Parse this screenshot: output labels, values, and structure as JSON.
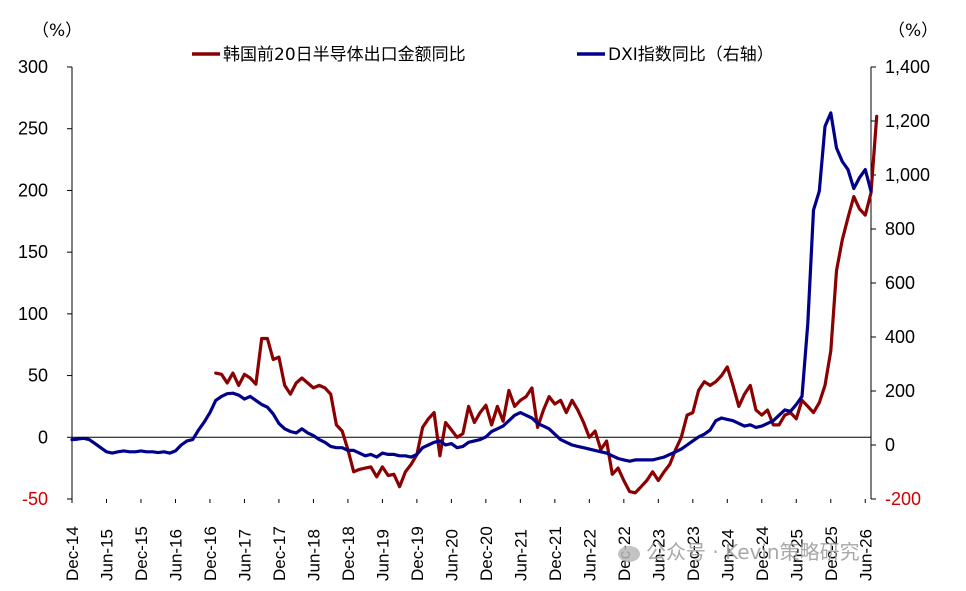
{
  "chart_data": {
    "type": "line",
    "left_unit": "（%）",
    "right_unit": "（%）",
    "left_axis": {
      "ticks": [
        300,
        250,
        200,
        150,
        100,
        50,
        0,
        -50
      ],
      "ylim": [
        -50,
        300
      ]
    },
    "right_axis": {
      "ticks": [
        "1,400",
        "1,200",
        "1,000",
        "800",
        "600",
        "400",
        "200",
        "0",
        "-200"
      ],
      "ylim": [
        -200,
        1400
      ]
    },
    "x_labels": [
      "Dec-14",
      "Jun-15",
      "Dec-15",
      "Jun-16",
      "Dec-16",
      "Jun-17",
      "Dec-17",
      "Jun-18",
      "Dec-18",
      "Jun-19",
      "Dec-19",
      "Jun-20",
      "Dec-20",
      "Jun-21",
      "Dec-21",
      "Jun-22",
      "Dec-22",
      "Jun-23",
      "Dec-23",
      "Jun-24",
      "Dec-24",
      "Jun-25",
      "Dec-25",
      "Jun-26"
    ],
    "x_start": "2014-12",
    "x_end": "2026-07",
    "series": [
      {
        "name": "韩国前20日半导体出口金额同比",
        "color": "#8b0000",
        "axis": "left",
        "points": [
          [
            "2017-01",
            52
          ],
          [
            "2017-02",
            51
          ],
          [
            "2017-03",
            44
          ],
          [
            "2017-04",
            52
          ],
          [
            "2017-05",
            42
          ],
          [
            "2017-06",
            51
          ],
          [
            "2017-07",
            48
          ],
          [
            "2017-08",
            43
          ],
          [
            "2017-09",
            80
          ],
          [
            "2017-10",
            80
          ],
          [
            "2017-11",
            63
          ],
          [
            "2017-12",
            65
          ],
          [
            "2018-01",
            42
          ],
          [
            "2018-02",
            35
          ],
          [
            "2018-03",
            44
          ],
          [
            "2018-04",
            48
          ],
          [
            "2018-05",
            44
          ],
          [
            "2018-06",
            40
          ],
          [
            "2018-07",
            42
          ],
          [
            "2018-08",
            40
          ],
          [
            "2018-09",
            35
          ],
          [
            "2018-10",
            10
          ],
          [
            "2018-11",
            5
          ],
          [
            "2018-12",
            -10
          ],
          [
            "2019-01",
            -28
          ],
          [
            "2019-02",
            -26
          ],
          [
            "2019-03",
            -25
          ],
          [
            "2019-04",
            -24
          ],
          [
            "2019-05",
            -32
          ],
          [
            "2019-06",
            -24
          ],
          [
            "2019-07",
            -31
          ],
          [
            "2019-08",
            -30
          ],
          [
            "2019-09",
            -40
          ],
          [
            "2019-10",
            -28
          ],
          [
            "2019-11",
            -22
          ],
          [
            "2019-12",
            -14
          ],
          [
            "2020-01",
            8
          ],
          [
            "2020-02",
            15
          ],
          [
            "2020-03",
            20
          ],
          [
            "2020-04",
            -15
          ],
          [
            "2020-05",
            12
          ],
          [
            "2020-06",
            6
          ],
          [
            "2020-07",
            0
          ],
          [
            "2020-08",
            3
          ],
          [
            "2020-09",
            25
          ],
          [
            "2020-10",
            12
          ],
          [
            "2020-11",
            20
          ],
          [
            "2020-12",
            26
          ],
          [
            "2021-01",
            10
          ],
          [
            "2021-02",
            25
          ],
          [
            "2021-03",
            13
          ],
          [
            "2021-04",
            38
          ],
          [
            "2021-05",
            25
          ],
          [
            "2021-06",
            30
          ],
          [
            "2021-07",
            33
          ],
          [
            "2021-08",
            40
          ],
          [
            "2021-09",
            8
          ],
          [
            "2021-10",
            22
          ],
          [
            "2021-11",
            33
          ],
          [
            "2021-12",
            27
          ],
          [
            "2022-01",
            30
          ],
          [
            "2022-02",
            20
          ],
          [
            "2022-03",
            30
          ],
          [
            "2022-04",
            22
          ],
          [
            "2022-05",
            12
          ],
          [
            "2022-06",
            0
          ],
          [
            "2022-07",
            5
          ],
          [
            "2022-08",
            -10
          ],
          [
            "2022-09",
            -3
          ],
          [
            "2022-10",
            -30
          ],
          [
            "2022-11",
            -25
          ],
          [
            "2022-12",
            -35
          ],
          [
            "2023-01",
            -44
          ],
          [
            "2023-02",
            -45
          ],
          [
            "2023-03",
            -40
          ],
          [
            "2023-04",
            -35
          ],
          [
            "2023-05",
            -28
          ],
          [
            "2023-06",
            -35
          ],
          [
            "2023-07",
            -28
          ],
          [
            "2023-08",
            -22
          ],
          [
            "2023-09",
            -10
          ],
          [
            "2023-10",
            0
          ],
          [
            "2023-11",
            18
          ],
          [
            "2023-12",
            20
          ],
          [
            "2024-01",
            38
          ],
          [
            "2024-02",
            45
          ],
          [
            "2024-03",
            42
          ],
          [
            "2024-04",
            45
          ],
          [
            "2024-05",
            50
          ],
          [
            "2024-06",
            57
          ],
          [
            "2024-07",
            42
          ],
          [
            "2024-08",
            25
          ],
          [
            "2024-09",
            35
          ],
          [
            "2024-10",
            42
          ],
          [
            "2024-11",
            22
          ],
          [
            "2024-12",
            18
          ],
          [
            "2025-01",
            22
          ],
          [
            "2025-02",
            10
          ],
          [
            "2025-03",
            10
          ],
          [
            "2025-04",
            18
          ],
          [
            "2025-05",
            20
          ],
          [
            "2025-06",
            15
          ],
          [
            "2025-07",
            30
          ],
          [
            "2025-08",
            25
          ],
          [
            "2025-09",
            20
          ],
          [
            "2025-10",
            28
          ],
          [
            "2025-11",
            42
          ],
          [
            "2025-12",
            70
          ],
          [
            "2026-01",
            135
          ],
          [
            "2026-02",
            160
          ],
          [
            "2026-03",
            178
          ],
          [
            "2026-04",
            195
          ],
          [
            "2026-05",
            185
          ],
          [
            "2026-06",
            180
          ],
          [
            "2026-07",
            198
          ],
          [
            "2026-08",
            260
          ]
        ]
      },
      {
        "name": "DXI指数同比（右轴）",
        "color": "#00008b",
        "axis": "right",
        "points": [
          [
            "2014-12",
            20
          ],
          [
            "2015-01",
            22
          ],
          [
            "2015-02",
            25
          ],
          [
            "2015-03",
            20
          ],
          [
            "2015-04",
            5
          ],
          [
            "2015-05",
            -10
          ],
          [
            "2015-06",
            -25
          ],
          [
            "2015-07",
            -30
          ],
          [
            "2015-08",
            -25
          ],
          [
            "2015-09",
            -22
          ],
          [
            "2015-10",
            -25
          ],
          [
            "2015-11",
            -25
          ],
          [
            "2015-12",
            -22
          ],
          [
            "2016-01",
            -25
          ],
          [
            "2016-02",
            -25
          ],
          [
            "2016-03",
            -28
          ],
          [
            "2016-04",
            -25
          ],
          [
            "2016-05",
            -30
          ],
          [
            "2016-06",
            -22
          ],
          [
            "2016-07",
            0
          ],
          [
            "2016-08",
            15
          ],
          [
            "2016-09",
            20
          ],
          [
            "2016-10",
            55
          ],
          [
            "2016-11",
            85
          ],
          [
            "2016-12",
            120
          ],
          [
            "2017-01",
            165
          ],
          [
            "2017-02",
            180
          ],
          [
            "2017-03",
            190
          ],
          [
            "2017-04",
            192
          ],
          [
            "2017-05",
            185
          ],
          [
            "2017-06",
            170
          ],
          [
            "2017-07",
            180
          ],
          [
            "2017-08",
            165
          ],
          [
            "2017-09",
            150
          ],
          [
            "2017-10",
            140
          ],
          [
            "2017-11",
            115
          ],
          [
            "2017-12",
            80
          ],
          [
            "2018-01",
            60
          ],
          [
            "2018-02",
            50
          ],
          [
            "2018-03",
            45
          ],
          [
            "2018-04",
            60
          ],
          [
            "2018-05",
            45
          ],
          [
            "2018-06",
            35
          ],
          [
            "2018-07",
            20
          ],
          [
            "2018-08",
            10
          ],
          [
            "2018-09",
            -5
          ],
          [
            "2018-10",
            -10
          ],
          [
            "2018-11",
            -10
          ],
          [
            "2018-12",
            -20
          ],
          [
            "2019-01",
            -20
          ],
          [
            "2019-02",
            -30
          ],
          [
            "2019-03",
            -40
          ],
          [
            "2019-04",
            -35
          ],
          [
            "2019-05",
            -45
          ],
          [
            "2019-06",
            -30
          ],
          [
            "2019-07",
            -35
          ],
          [
            "2019-08",
            -35
          ],
          [
            "2019-09",
            -40
          ],
          [
            "2019-10",
            -40
          ],
          [
            "2019-11",
            -45
          ],
          [
            "2019-12",
            -35
          ],
          [
            "2020-01",
            -10
          ],
          [
            "2020-02",
            0
          ],
          [
            "2020-03",
            10
          ],
          [
            "2020-04",
            15
          ],
          [
            "2020-05",
            0
          ],
          [
            "2020-06",
            5
          ],
          [
            "2020-07",
            -10
          ],
          [
            "2020-08",
            -5
          ],
          [
            "2020-09",
            10
          ],
          [
            "2020-10",
            15
          ],
          [
            "2020-11",
            20
          ],
          [
            "2020-12",
            30
          ],
          [
            "2021-01",
            50
          ],
          [
            "2021-02",
            60
          ],
          [
            "2021-03",
            70
          ],
          [
            "2021-04",
            90
          ],
          [
            "2021-05",
            110
          ],
          [
            "2021-06",
            120
          ],
          [
            "2021-07",
            110
          ],
          [
            "2021-08",
            100
          ],
          [
            "2021-09",
            80
          ],
          [
            "2021-10",
            70
          ],
          [
            "2021-11",
            60
          ],
          [
            "2021-12",
            40
          ],
          [
            "2022-01",
            20
          ],
          [
            "2022-02",
            10
          ],
          [
            "2022-03",
            0
          ],
          [
            "2022-04",
            -5
          ],
          [
            "2022-05",
            -10
          ],
          [
            "2022-06",
            -15
          ],
          [
            "2022-07",
            -20
          ],
          [
            "2022-08",
            -25
          ],
          [
            "2022-09",
            -30
          ],
          [
            "2022-10",
            -40
          ],
          [
            "2022-11",
            -50
          ],
          [
            "2022-12",
            -55
          ],
          [
            "2023-01",
            -60
          ],
          [
            "2023-02",
            -55
          ],
          [
            "2023-03",
            -55
          ],
          [
            "2023-04",
            -55
          ],
          [
            "2023-05",
            -55
          ],
          [
            "2023-06",
            -50
          ],
          [
            "2023-07",
            -45
          ],
          [
            "2023-08",
            -35
          ],
          [
            "2023-09",
            -25
          ],
          [
            "2023-10",
            -15
          ],
          [
            "2023-11",
            0
          ],
          [
            "2023-12",
            15
          ],
          [
            "2024-01",
            30
          ],
          [
            "2024-02",
            40
          ],
          [
            "2024-03",
            55
          ],
          [
            "2024-04",
            90
          ],
          [
            "2024-05",
            100
          ],
          [
            "2024-06",
            95
          ],
          [
            "2024-07",
            90
          ],
          [
            "2024-08",
            80
          ],
          [
            "2024-09",
            70
          ],
          [
            "2024-10",
            75
          ],
          [
            "2024-11",
            65
          ],
          [
            "2024-12",
            70
          ],
          [
            "2025-01",
            80
          ],
          [
            "2025-02",
            90
          ],
          [
            "2025-03",
            110
          ],
          [
            "2025-04",
            130
          ],
          [
            "2025-05",
            125
          ],
          [
            "2025-06",
            150
          ],
          [
            "2025-07",
            180
          ],
          [
            "2025-08",
            450
          ],
          [
            "2025-09",
            870
          ],
          [
            "2025-10",
            940
          ],
          [
            "2025-11",
            1180
          ],
          [
            "2025-12",
            1230
          ],
          [
            "2026-01",
            1100
          ],
          [
            "2026-02",
            1050
          ],
          [
            "2026-03",
            1020
          ],
          [
            "2026-04",
            950
          ],
          [
            "2026-05",
            990
          ],
          [
            "2026-06",
            1020
          ],
          [
            "2026-07",
            940
          ]
        ]
      }
    ]
  },
  "watermark": "公众号 · Kevin策略研究"
}
